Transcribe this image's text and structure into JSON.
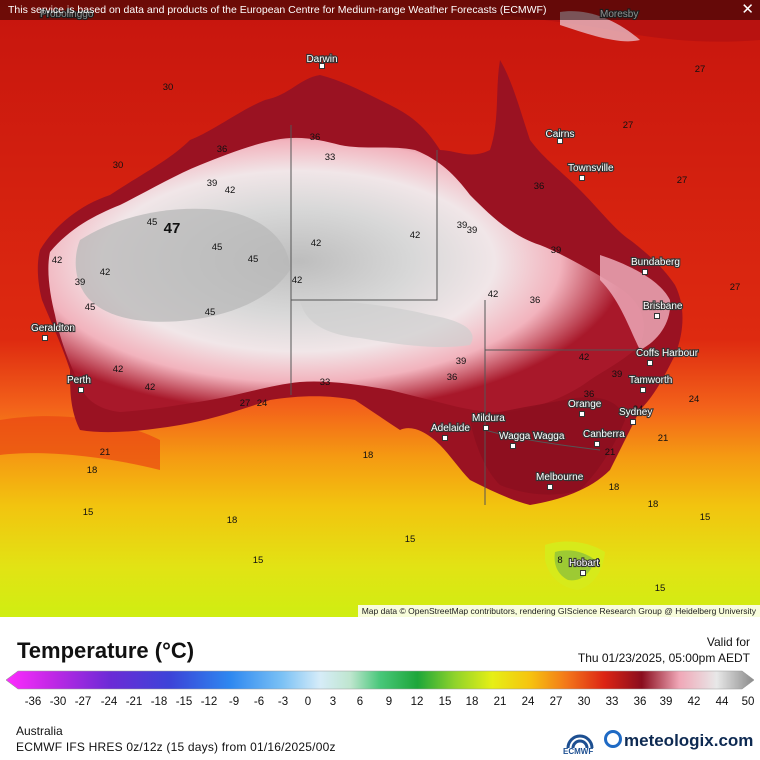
{
  "disclaimer": "This service is based on data and products of the European Centre for Medium-range Weather Forecasts (ECMWF)",
  "map_labels": {
    "top_left_place": "Probolinggo",
    "top_right_place": "Moresby"
  },
  "attribution": "Map data © OpenStreetMap contributors, rendering GIScience Research Group @ Heidelberg University",
  "title": "Temperature (°C)",
  "valid_label": "Valid for",
  "valid_time": "Thu 01/23/2025, 05:00pm AEDT",
  "region": "Australia",
  "model_info": "ECMWF IFS HRES 0z/12z (15 days) from  01/16/2025/00z",
  "ecmwf_label": "ECMWF",
  "brand": "meteologix.com",
  "scale_ticks": [
    "-36",
    "-30",
    "-27",
    "-24",
    "-21",
    "-18",
    "-15",
    "-12",
    "-9",
    "-6",
    "-3",
    "0",
    "3",
    "6",
    "9",
    "12",
    "15",
    "18",
    "21",
    "24",
    "27",
    "30",
    "33",
    "36",
    "39",
    "42",
    "44",
    "50"
  ],
  "colors": {
    "ocean_warm": "#d81e10",
    "ocean_mid": "#f26a10",
    "ocean_cool": "#f4c10c",
    "ocean_cold": "#d8ec12",
    "interior_hot": "#e9e9e9",
    "interior_max": "#a9a9a9"
  },
  "cities": [
    "Darwin",
    "Cairns",
    "Townsville",
    "Bundaberg",
    "Brisbane",
    "Coffs Harbour",
    "Tamworth",
    "Sydney",
    "Orange",
    "Canberra",
    "Wagga Wagga",
    "Mildura",
    "Adelaide",
    "Melbourne",
    "Hobart",
    "Perth",
    "Geraldton"
  ],
  "contour_labels": [
    "30",
    "30",
    "36",
    "39",
    "42",
    "45",
    "47",
    "45",
    "45",
    "42",
    "39",
    "42",
    "45",
    "45",
    "42",
    "42",
    "42",
    "42",
    "42",
    "39",
    "36",
    "33",
    "27",
    "24",
    "21",
    "18",
    "15",
    "18",
    "18",
    "15",
    "15",
    "42",
    "39",
    "36",
    "39",
    "36",
    "39",
    "42",
    "36",
    "24",
    "21",
    "18",
    "18",
    "15",
    "15",
    "21",
    "24",
    "27",
    "27",
    "27",
    "27",
    "33",
    "36",
    "39",
    "8"
  ]
}
